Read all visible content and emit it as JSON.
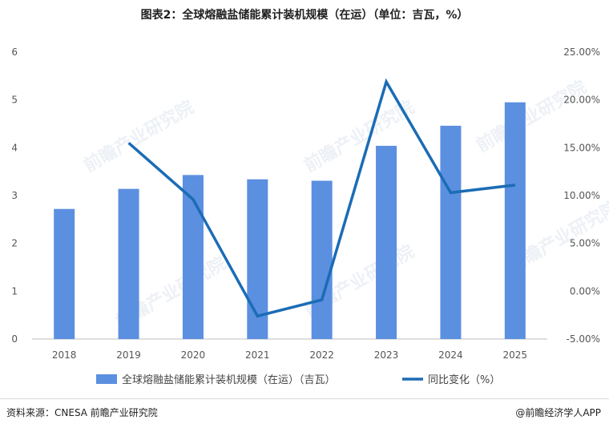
{
  "title": "图表2：全球熔融盐储能累计装机规模（在运）（单位：吉瓦，%）",
  "chart_data": {
    "type": "bar+line",
    "categories": [
      "2018",
      "2019",
      "2020",
      "2021",
      "2022",
      "2023",
      "2024",
      "2025"
    ],
    "series": [
      {
        "name": "全球熔融盐储能累计装机规模（在运）（吉瓦）",
        "type": "bar",
        "axis": "left",
        "color": "#5b8fe0",
        "values": [
          2.72,
          3.14,
          3.43,
          3.34,
          3.31,
          4.04,
          4.46,
          4.95
        ]
      },
      {
        "name": "同比变化（%）",
        "type": "line",
        "axis": "right",
        "color": "#1b6cb5",
        "values": [
          null,
          15.5,
          9.6,
          -2.6,
          -0.9,
          21.9,
          10.3,
          11.1
        ]
      }
    ],
    "y_left": {
      "range": [
        0,
        6
      ],
      "ticks": [
        "0",
        "1",
        "2",
        "3",
        "4",
        "5",
        "6"
      ]
    },
    "y_right": {
      "range": [
        -5,
        25
      ],
      "ticks": [
        "-5.00%",
        "0.00%",
        "5.00%",
        "10.00%",
        "15.00%",
        "20.00%",
        "25.00%"
      ]
    },
    "grid": false,
    "legend_position": "bottom"
  },
  "watermark": "前瞻产业研究院",
  "footer": {
    "source": "资料来源：CNESA  前瞻产业研究院",
    "brand": "@前瞻经济学人APP"
  }
}
